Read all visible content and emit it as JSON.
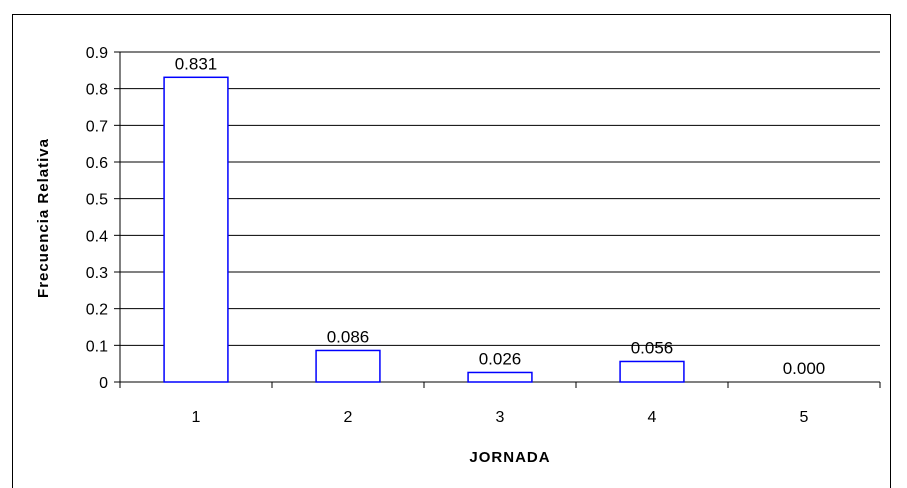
{
  "chart_data": {
    "type": "bar",
    "categories": [
      "1",
      "2",
      "3",
      "4",
      "5"
    ],
    "values": [
      0.831,
      0.086,
      0.026,
      0.056,
      0.0
    ],
    "data_labels": [
      "0.831",
      "0.086",
      "0.026",
      "0.056",
      "0.000"
    ],
    "xlabel": "JORNADA",
    "ylabel": "Frecuencia Relativa",
    "ylim": [
      0,
      0.9
    ],
    "yticks": [
      "0",
      "0.1",
      "0.2",
      "0.3",
      "0.4",
      "0.5",
      "0.6",
      "0.7",
      "0.8",
      "0.9"
    ],
    "grid": true,
    "legend": "none",
    "bar_fill": "#ffffff",
    "bar_stroke": "#0000ff"
  }
}
